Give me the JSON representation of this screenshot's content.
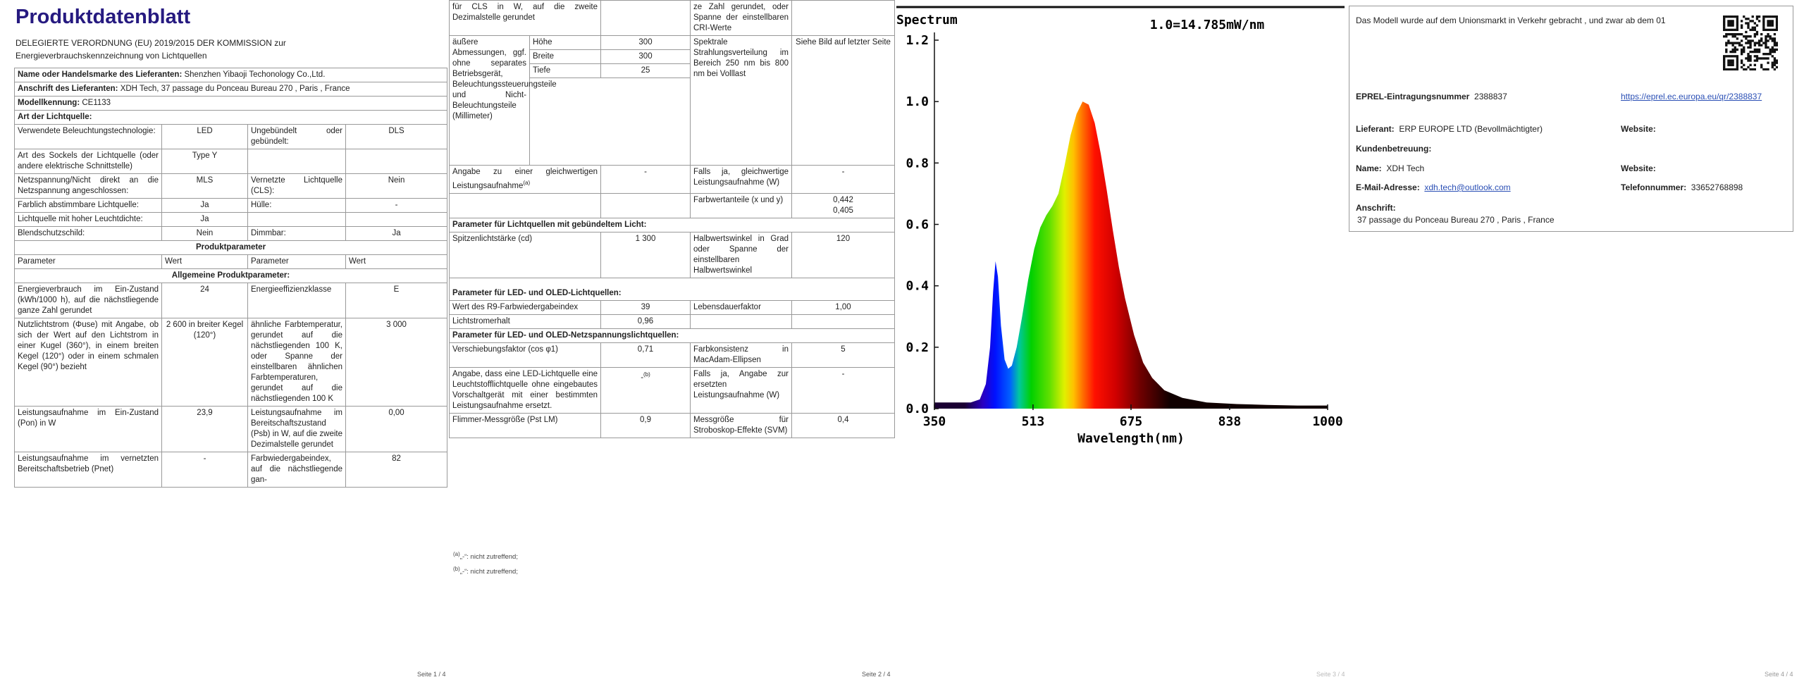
{
  "page1": {
    "title": "Produktdatenblatt",
    "subtitle": "DELEGIERTE VERORDNUNG (EU) 2019/2015 DER KOMMISSION zur Energieverbrauchskennzeichnung von Lichtquellen",
    "supplier_name": {
      "label": "Name oder Handelsmarke des Lieferanten:",
      "value": "Shenzhen Yibaoji Techonology Co.,Ltd."
    },
    "supplier_address": {
      "label": "Anschrift des Lieferanten:",
      "value": "XDH Tech, 37 passage du Ponceau Bureau 270 , Paris , France"
    },
    "model": {
      "label": "Modellkennung:",
      "value": "CE1133"
    },
    "light_source_heading": "Art der Lichtquelle:",
    "light_source_rows": [
      [
        "Verwendete Beleuchtungstechnologie:",
        "LED",
        "Ungebündelt oder gebündelt:",
        "DLS"
      ],
      [
        "Art des Sockels der Lichtquelle (oder andere elektrische Schnittstelle)",
        "Type Y",
        null,
        null
      ],
      [
        "Netzspannung/Nicht direkt an die Netzspannung angeschlossen:",
        "MLS",
        "Vernetzte Lichtquelle (CLS):",
        "Nein"
      ],
      [
        "Farblich abstimmbare Lichtquelle:",
        "Ja",
        "Hülle:",
        "-"
      ],
      [
        "Lichtquelle mit hoher Leuchtdichte:",
        "Ja",
        null,
        null
      ],
      [
        "Blendschutzschild:",
        "Nein",
        "Dimmbar:",
        "Ja"
      ]
    ],
    "product_parameters_heading": "Produktparameter",
    "column_headers": [
      "Parameter",
      "Wert",
      "Parameter",
      "Wert"
    ],
    "general_heading": "Allgemeine Produktparameter:",
    "general_rows": [
      [
        "Energieverbrauch im Ein-Zustand (kWh/1000 h), auf die nächstliegende ganze Zahl gerundet",
        "24",
        "Energieeffizienzklasse",
        "E"
      ],
      [
        "Nutzlichtstrom (Φuse) mit Angabe, ob sich der Wert auf den Lichtstrom in einer Kugel (360°), in einem breiten Kegel (120°) oder in einem schmalen Kegel (90°) bezieht",
        "2 600 in breiter Kegel (120°)",
        "ähnliche Farbtemperatur, gerundet auf die nächstliegenden 100 K, oder Spanne der einstellbaren ähnlichen Farbtemperaturen, gerundet auf die nächstliegenden 100 K",
        "3 000"
      ],
      [
        "Leistungsaufnahme im Ein-Zustand (Pon) in W",
        "23,9",
        "Leistungsaufnahme im Bereitschaftszustand (Psb) in W, auf die zweite Dezimalstelle gerundet",
        "0,00"
      ],
      [
        "Leistungsaufnahme im vernetzten Bereitschaftsbetrieb (Pnet)",
        "-",
        "Farbwiedergabeindex, auf die nächstliegende gan-",
        "82"
      ]
    ],
    "footer": "Seite 1 / 4"
  },
  "page2": {
    "continuation": {
      "label": "für CLS in W, auf die zweite Dezimalstelle gerundet",
      "param": "ze Zahl gerundet, oder Spanne der einstellbaren CRI-Werte"
    },
    "dimensions": {
      "label": "äußere Abmessungen, ggf. ohne separates Betriebsgerät, Beleuchtungssteuerungsteile und Nicht-Beleuchtungsteile (Millimeter)",
      "items": [
        {
          "name": "Höhe",
          "value": "300"
        },
        {
          "name": "Breite",
          "value": "300"
        },
        {
          "name": "Tiefe",
          "value": "25"
        }
      ],
      "param": "Spektrale Strahlungsverteilung im Bereich 250 nm bis 800 nm bei Volllast",
      "value": "Siehe Bild auf letzter Seite"
    },
    "equivalent_power": {
      "label": "Angabe zu einer gleichwertigen Leistungsaufnahme",
      "note": "(a)",
      "value": "-",
      "param": "Falls ja, gleichwertige Leistungsaufnahme (W)",
      "param_value": "-"
    },
    "chromaticity": {
      "param": "Farbwertanteile (x und y)",
      "values": [
        "0,442",
        "0,405"
      ]
    },
    "directional_heading": "Parameter für Lichtquellen mit gebündeltem Licht:",
    "directional_rows": [
      [
        "Spitzenlichtstärke (cd)",
        "1 300",
        "Halbwertswinkel in Grad oder Spanne der einstellbaren Halbwertswinkel",
        "120"
      ]
    ],
    "led_heading": "Parameter für LED- und OLED-Lichtquellen:",
    "led_rows": [
      [
        "Wert des R9-Farbwiedergabeindex",
        "39",
        "Lebensdauerfaktor",
        "1,00"
      ],
      [
        "Lichtstromerhalt",
        "0,96",
        null,
        null
      ]
    ],
    "mains_heading": "Parameter für LED- und OLED-Netzspannungslichtquellen:",
    "mains_rows": [
      [
        "Verschiebungsfaktor (cos φ1)",
        "0,71",
        "Farbkonsistenz in MacAdam-Ellipsen",
        "5"
      ]
    ],
    "retrofit": {
      "label": "Angabe, dass eine LED-Lichtquelle eine Leuchtstofflichtquelle ohne eingebautes Vorschaltgerät mit einer bestimmten Leistungsaufnahme ersetzt.",
      "value": "-",
      "note": "(b)",
      "param": "Falls ja, Angabe zur ersetzten Leistungsaufnahme (W)",
      "param_value": "-"
    },
    "flicker_rows": [
      [
        "Flimmer-Messgröße (Pst LM)",
        "0,9",
        "Messgröße für Stroboskop-Effekte (SVM)",
        "0,4"
      ]
    ],
    "footnotes": [
      {
        "mark": "(a)",
        "text": "„-“: nicht zutreffend;"
      },
      {
        "mark": "(b)",
        "text": "„-“: nicht zutreffend;"
      }
    ],
    "footer": "Seite 2 / 4"
  },
  "page3": {
    "spectrum": {
      "type": "area",
      "title": "Spectrum",
      "annotation": "1.0=14.785mW/nm",
      "x_label": "Wavelength(nm)",
      "x": [
        350,
        380,
        410,
        425,
        435,
        442,
        447,
        451,
        455,
        460,
        466,
        472,
        478,
        486,
        495,
        505,
        515,
        525,
        535,
        545,
        555,
        565,
        575,
        585,
        595,
        605,
        615,
        625,
        635,
        645,
        655,
        665,
        680,
        695,
        710,
        730,
        760,
        800,
        850,
        900,
        950,
        1000
      ],
      "values": [
        0.02,
        0.02,
        0.02,
        0.03,
        0.08,
        0.2,
        0.38,
        0.48,
        0.43,
        0.27,
        0.16,
        0.13,
        0.14,
        0.2,
        0.3,
        0.42,
        0.52,
        0.59,
        0.63,
        0.66,
        0.7,
        0.79,
        0.89,
        0.96,
        1.0,
        0.99,
        0.93,
        0.83,
        0.71,
        0.58,
        0.46,
        0.36,
        0.24,
        0.15,
        0.1,
        0.06,
        0.035,
        0.02,
        0.015,
        0.012,
        0.01,
        0.01
      ],
      "xlim": [
        350,
        1000
      ],
      "ylim": [
        0,
        1.2
      ],
      "xticks": [
        350,
        513,
        675,
        838,
        1000
      ],
      "yticks": [
        {
          "value": 0,
          "label": "0.0"
        },
        0.2,
        0.4,
        0.6,
        0.8,
        {
          "value": 1,
          "label": "1.0"
        },
        1.2
      ]
    },
    "footer": "Seite 3 / 4"
  },
  "page4": {
    "market_intro": "Das Modell wurde auf dem Unionsmarkt in Verkehr gebracht , und zwar ab dem 01",
    "eprel": {
      "label": "EPREL-Eintragungsnummer",
      "value": "2388837",
      "link": "https://eprel.ec.europa.eu/qr/2388837"
    },
    "supplier": {
      "label": "Lieferant:",
      "value": "ERP EUROPE LTD (Bevollmächtigter)"
    },
    "supplier_website": "Website:",
    "customer_service": "Kundenbetreuung:",
    "name": {
      "label": "Name:",
      "value": "XDH Tech"
    },
    "website": "Website:",
    "email": {
      "label": "E-Mail-Adresse:",
      "value": "xdh.tech@outlook.com"
    },
    "phone": {
      "label": "Telefonnummer:",
      "value": "33652768898"
    },
    "address": {
      "label": "Anschrift:",
      "value": "37 passage du Ponceau Bureau 270 , Paris , France"
    },
    "footer": "Seite 4 / 4"
  }
}
